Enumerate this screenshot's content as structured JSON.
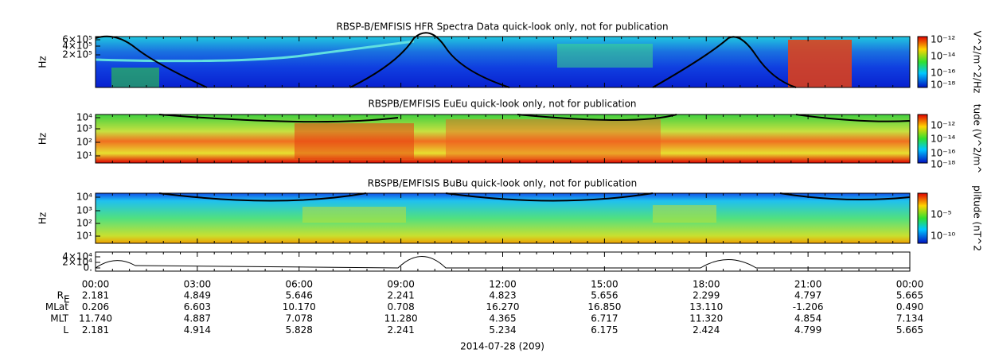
{
  "panels": [
    {
      "title": "RBSP-B/EMFISIS  HFR Spectra Data quick-look only, not for publication",
      "y_label": "Hz",
      "yticks": [
        "6×10⁵",
        "4×10⁵",
        "2×10⁵"
      ],
      "colorbar_label": "V^2/m^2/Hz",
      "colorbar_ticks": [
        "10⁻¹²",
        "10⁻¹⁴",
        "10⁻¹⁶",
        "10⁻¹⁸"
      ]
    },
    {
      "title": "RBSPB/EMFISIS  EuEu quick-look only, not for publication",
      "y_label": "Hz",
      "yticks": [
        "10⁴",
        "10³",
        "10²",
        "10¹"
      ],
      "colorbar_label": "tude (V^2/m^",
      "colorbar_ticks": [
        "10⁻¹²",
        "10⁻¹⁴",
        "10⁻¹⁶",
        "10⁻¹⁸"
      ]
    },
    {
      "title": "RBSPB/EMFISIS  BuBu quick-look only, not for publication",
      "y_label": "Hz",
      "yticks": [
        "10⁴",
        "10³",
        "10²",
        "10¹"
      ],
      "colorbar_label": "plitude (nT^2",
      "colorbar_ticks": [
        "10⁻⁵",
        "10⁻¹⁰"
      ]
    },
    {
      "yticks": [
        "4×10⁴",
        "2×10⁴",
        "0."
      ]
    }
  ],
  "x_ticks": [
    "00:00",
    "03:00",
    "06:00",
    "09:00",
    "12:00",
    "15:00",
    "18:00",
    "21:00",
    "00:00"
  ],
  "ephemeris": [
    {
      "label": "R",
      "sub": "E",
      "values": [
        "2.181",
        "4.849",
        "5.646",
        "2.241",
        "4.823",
        "5.656",
        "2.299",
        "4.797",
        "5.665"
      ]
    },
    {
      "label": "MLat",
      "values": [
        "0.206",
        "6.603",
        "10.170",
        "0.708",
        "16.270",
        "16.850",
        "13.110",
        "-1.206",
        "0.490"
      ]
    },
    {
      "label": "MLT",
      "values": [
        "11.740",
        "4.887",
        "7.078",
        "11.280",
        "4.365",
        "6.717",
        "11.320",
        "4.854",
        "7.134"
      ]
    },
    {
      "label": "L",
      "values": [
        "2.181",
        "4.914",
        "5.828",
        "2.241",
        "5.234",
        "6.175",
        "2.424",
        "4.799",
        "5.665"
      ]
    }
  ],
  "date": "2014-07-28 (209)"
}
